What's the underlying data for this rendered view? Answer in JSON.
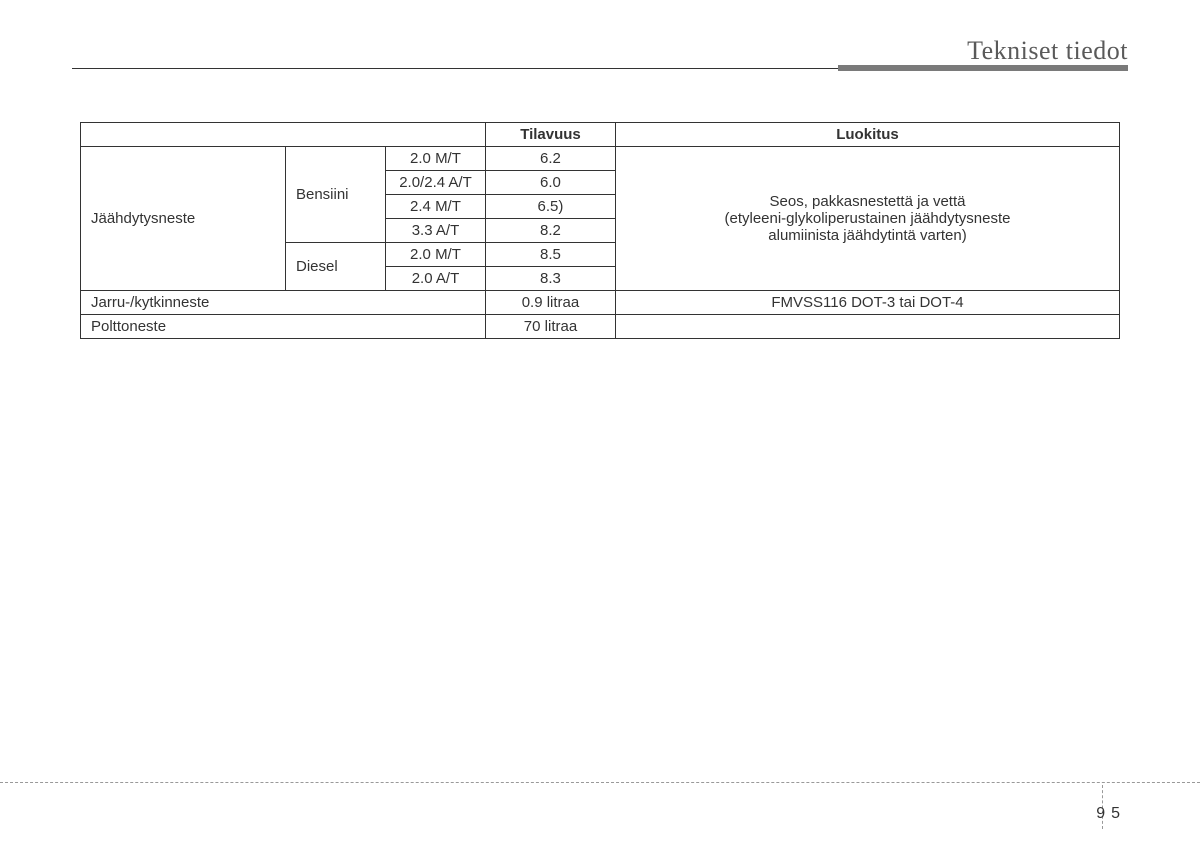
{
  "header": {
    "title": "Tekniset tiedot"
  },
  "table": {
    "headers": {
      "volume": "Tilavuus",
      "classification": "Luokitus"
    },
    "coolant": {
      "label": "Jäähdytysneste",
      "bensiini_label": "Bensiini",
      "diesel_label": "Diesel",
      "rows": {
        "b1_variant": "2.0 M/T",
        "b1_volume": "6.2",
        "b2_variant": "2.0/2.4 A/T",
        "b2_volume": "6.0",
        "b3_variant": "2.4 M/T",
        "b3_volume": "6.5)",
        "b4_variant": "3.3 A/T",
        "b4_volume": "8.2",
        "d1_variant": "2.0 M/T",
        "d1_volume": "8.5",
        "d2_variant": "2.0 A/T",
        "d2_volume": "8.3"
      },
      "classification_line1": "Seos, pakkasnestettä ja vettä",
      "classification_line2": "(etyleeni-glykoliperustainen jäähdytysneste",
      "classification_line3": "alumiinista jäähdytintä varten)"
    },
    "brake": {
      "label": "Jarru-/kytkinneste",
      "volume": "0.9 litraa",
      "classification": "FMVSS116 DOT-3 tai DOT-4"
    },
    "fuel": {
      "label": "Polttoneste",
      "volume": "70 litraa"
    }
  },
  "footer": {
    "section": "9",
    "page": "5"
  }
}
